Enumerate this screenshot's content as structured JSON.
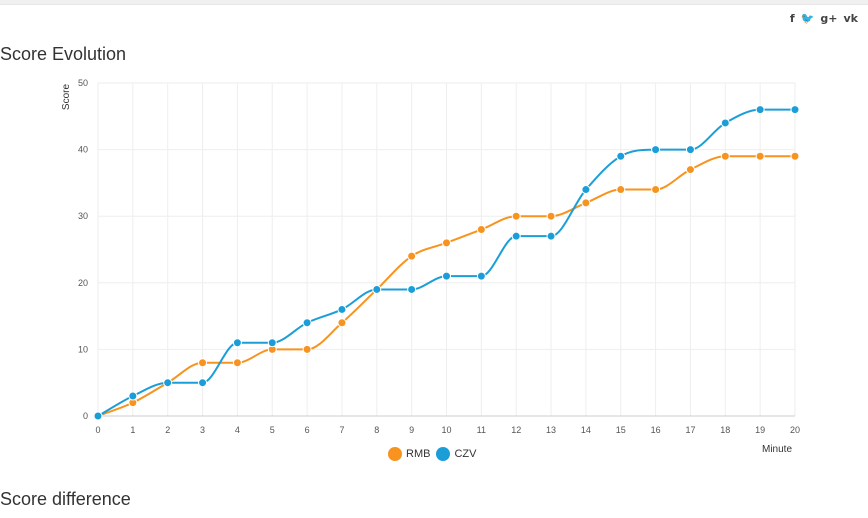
{
  "social": {
    "facebook": "f",
    "twitter": "🐦",
    "googleplus": "g+",
    "vk": "vk"
  },
  "page": {
    "title": "Score Evolution",
    "next_title": "Score difference"
  },
  "colors": {
    "rmb": "#f7931e",
    "czv": "#1b9ed8",
    "grid": "#eeeeee",
    "axis": "#cccccc"
  },
  "chart_data": {
    "type": "line",
    "title": "Score Evolution",
    "xlabel": "Minute",
    "ylabel": "Score",
    "x": [
      0,
      1,
      2,
      3,
      4,
      5,
      6,
      7,
      8,
      9,
      10,
      11,
      12,
      13,
      14,
      15,
      16,
      17,
      18,
      19,
      20
    ],
    "xlim": [
      0,
      20
    ],
    "ylim": [
      0,
      50
    ],
    "yticks": [
      0,
      10,
      20,
      30,
      40,
      50
    ],
    "grid": true,
    "legend_position": "bottom",
    "series": [
      {
        "name": "RMB",
        "color": "#f7931e",
        "values": [
          0,
          2,
          5,
          8,
          8,
          10,
          10,
          14,
          19,
          24,
          26,
          28,
          30,
          30,
          32,
          34,
          34,
          37,
          39,
          39,
          39
        ]
      },
      {
        "name": "CZV",
        "color": "#1b9ed8",
        "values": [
          0,
          3,
          5,
          5,
          11,
          11,
          14,
          16,
          19,
          19,
          21,
          21,
          27,
          27,
          34,
          39,
          40,
          40,
          44,
          46,
          46
        ]
      }
    ]
  }
}
